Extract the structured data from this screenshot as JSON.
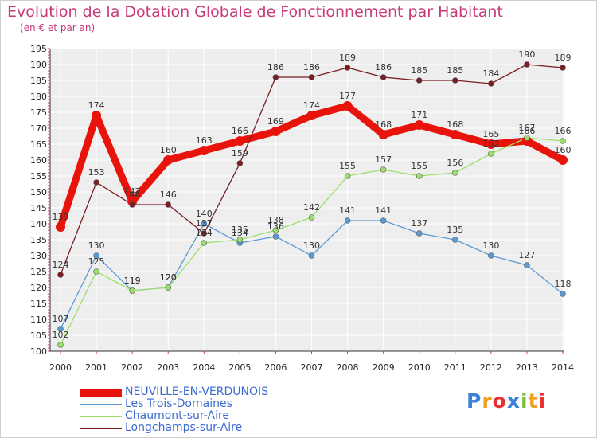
{
  "chart_data": {
    "type": "line",
    "title": "Evolution de la Dotation Globale de Fonctionnement par Habitant",
    "subtitle": "(en € et par an)",
    "xlabel": "",
    "ylabel": "",
    "x": [
      "2000",
      "2001",
      "2002",
      "2003",
      "2004",
      "2005",
      "2006",
      "2007",
      "2008",
      "2009",
      "2010",
      "2011",
      "2012",
      "2013",
      "2014"
    ],
    "ylim": [
      100,
      195
    ],
    "yticks": [
      100,
      105,
      110,
      115,
      120,
      125,
      130,
      135,
      140,
      145,
      150,
      155,
      160,
      165,
      170,
      175,
      180,
      185,
      190,
      195
    ],
    "grid": true,
    "series": [
      {
        "name": "NEUVILLE-EN-VERDUNOIS",
        "color": "#e8140c",
        "values": [
          139,
          174,
          147,
          160,
          163,
          166,
          169,
          174,
          177,
          168,
          171,
          168,
          165,
          166,
          160
        ]
      },
      {
        "name": "Les Trois-Domaines",
        "color": "#5b9bd5",
        "values": [
          107,
          130,
          119,
          120,
          140,
          134,
          136,
          130,
          141,
          141,
          137,
          135,
          130,
          127,
          118
        ]
      },
      {
        "name": "Chaumont-sur-Aire",
        "color": "#9be06a",
        "values": [
          102,
          125,
          119,
          120,
          134,
          135,
          138,
          142,
          155,
          157,
          155,
          156,
          162,
          167,
          166
        ]
      },
      {
        "name": "Longchamps-sur-Aire",
        "color": "#7a1e24",
        "values": [
          124,
          153,
          146,
          146,
          137,
          159,
          186,
          186,
          189,
          186,
          185,
          185,
          184,
          190,
          189
        ]
      }
    ]
  },
  "legend": {
    "items": [
      "NEUVILLE-EN-VERDUNOIS",
      "Les Trois-Domaines",
      "Chaumont-sur-Aire",
      "Longchamps-sur-Aire"
    ]
  },
  "logo": {
    "letters": [
      "P",
      "r",
      "o",
      "x",
      "i",
      "t",
      "i"
    ],
    "colors": [
      "#3c7fd8",
      "#f0a020",
      "#e83030",
      "#3c7fd8",
      "#7bc043",
      "#f0a020",
      "#e83030"
    ]
  }
}
